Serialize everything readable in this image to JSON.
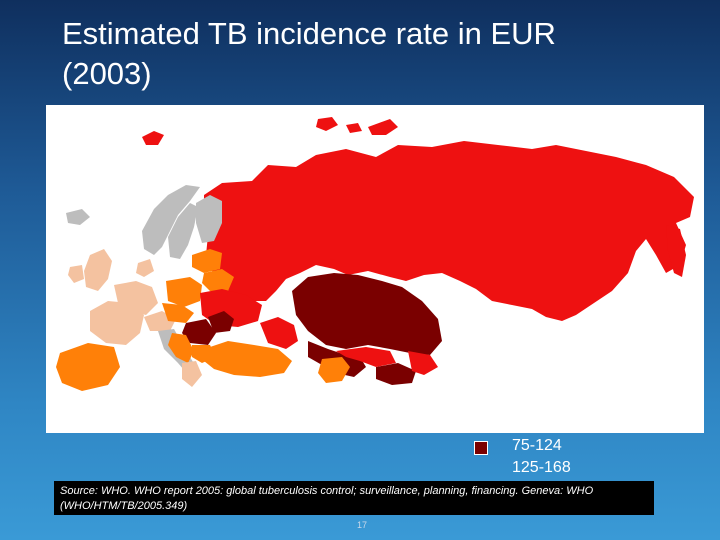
{
  "slide": {
    "title": "Estimated TB incidence rate in EUR\n(2003)",
    "page_number": "17"
  },
  "legend": {
    "items": [
      {
        "label": "75-124",
        "color": "#7a0000"
      },
      {
        "label": "125-168",
        "color": "#7a0000"
      }
    ]
  },
  "colors": {
    "very_high": "#7a0000",
    "high": "#ee1111",
    "medium": "#ff8008",
    "low": "#f4c2a0",
    "no_data": "#bdbdbd",
    "water": "#ffffff"
  },
  "source": {
    "text": "Source: WHO. WHO report 2005: global tuberculosis control; surveillance, planning, financing. Geneva: WHO (WHO/HTM/TB/2005.349)"
  }
}
